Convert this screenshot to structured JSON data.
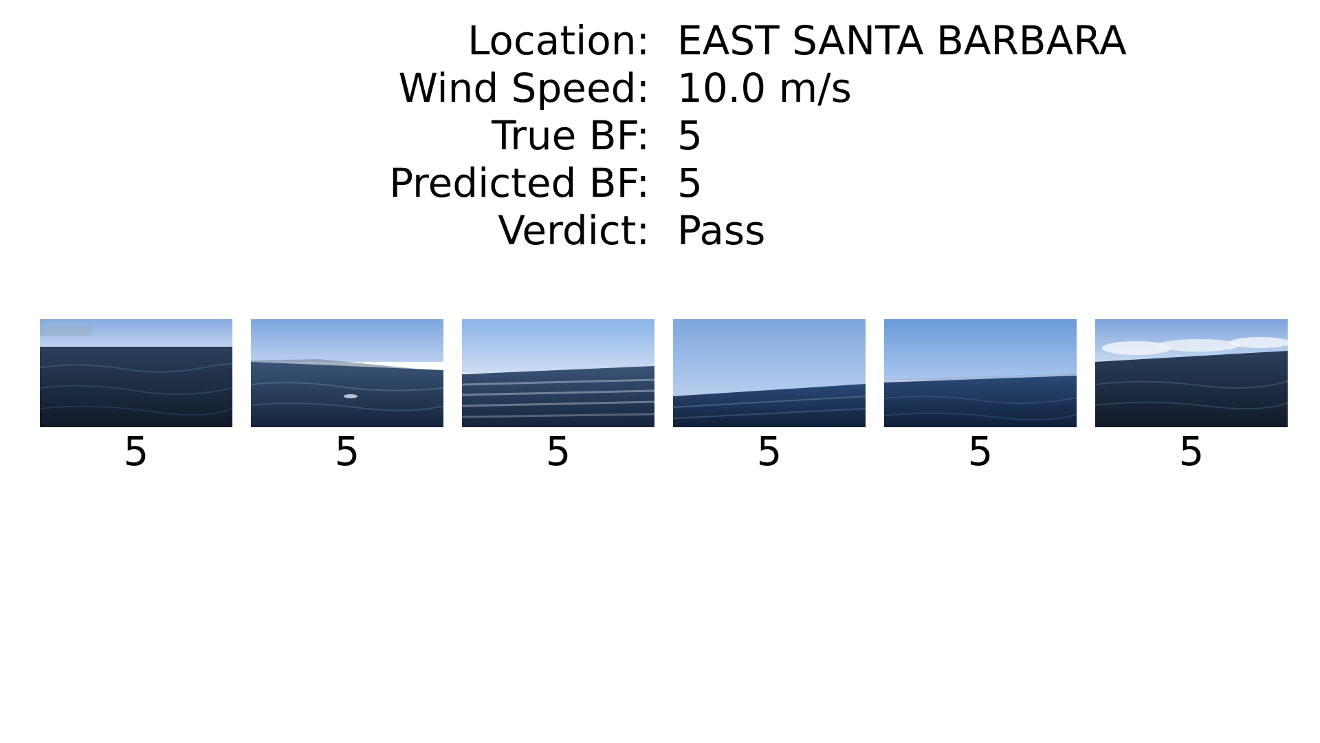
{
  "info": {
    "location_label": "Location:",
    "location_value": "EAST SANTA BARBARA",
    "wind_speed_label": "Wind Speed:",
    "wind_speed_value": "10.0 m/s",
    "true_bf_label": "True BF:",
    "true_bf_value": "5",
    "predicted_bf_label": "Predicted BF:",
    "predicted_bf_value": "5",
    "verdict_label": "Verdict:",
    "verdict_value": "Pass"
  },
  "frames": [
    {
      "label": "5"
    },
    {
      "label": "5"
    },
    {
      "label": "5"
    },
    {
      "label": "5"
    },
    {
      "label": "5"
    },
    {
      "label": "5"
    }
  ]
}
